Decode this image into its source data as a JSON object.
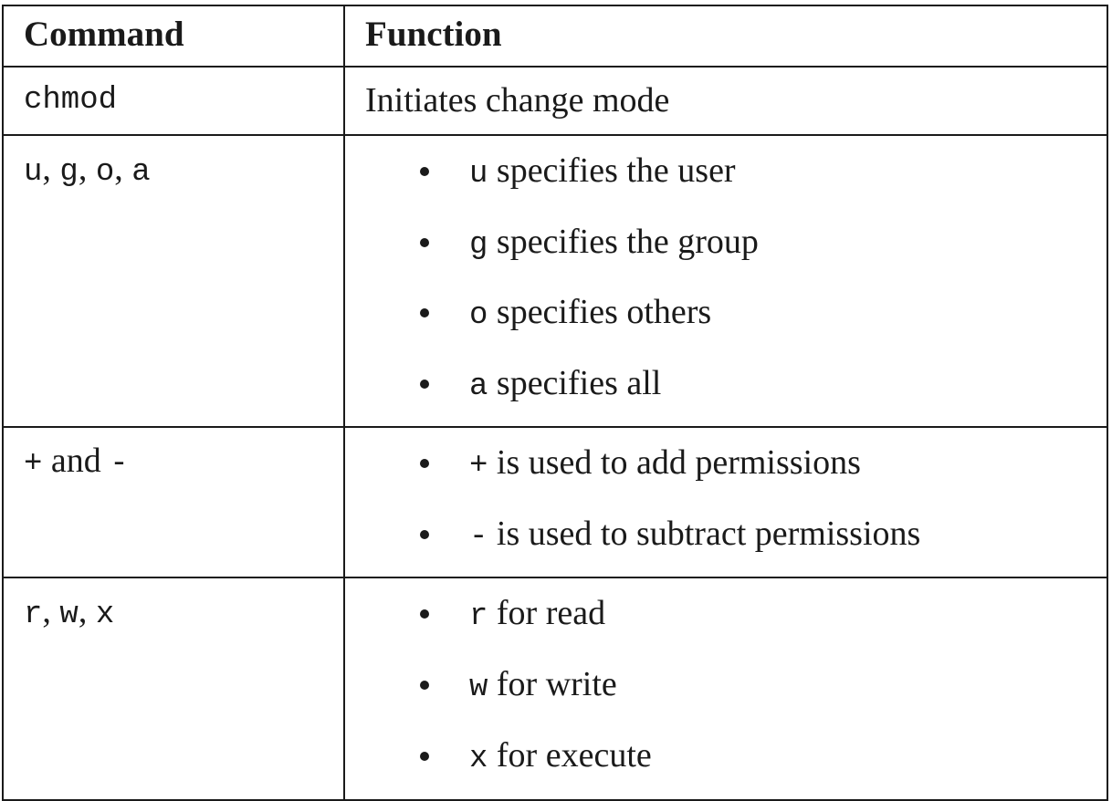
{
  "table": {
    "headers": {
      "command": "Command",
      "function": "Function"
    },
    "rows": [
      {
        "command": "chmod",
        "function_text": "Initiates change mode"
      },
      {
        "command_parts": [
          "u",
          ", ",
          "g",
          ", ",
          "o",
          ", ",
          "a"
        ],
        "bullets": [
          {
            "code": "u",
            "text": " specifies the user"
          },
          {
            "code": "g",
            "text": " specifies the group"
          },
          {
            "code": "o",
            "text": " specifies others"
          },
          {
            "code": "a",
            "text": " specifies all"
          }
        ]
      },
      {
        "command_parts": [
          "+",
          " and ",
          "-"
        ],
        "bullets": [
          {
            "code": "+",
            "text": " is used to add permissions"
          },
          {
            "code": "-",
            "text": " is used to subtract permissions"
          }
        ]
      },
      {
        "command_parts": [
          "r",
          ", ",
          "w",
          ", ",
          "x"
        ],
        "bullets": [
          {
            "code": "r",
            "text": " for read"
          },
          {
            "code": "w",
            "text": " for write"
          },
          {
            "code": "x",
            "text": " for execute"
          }
        ]
      }
    ]
  }
}
